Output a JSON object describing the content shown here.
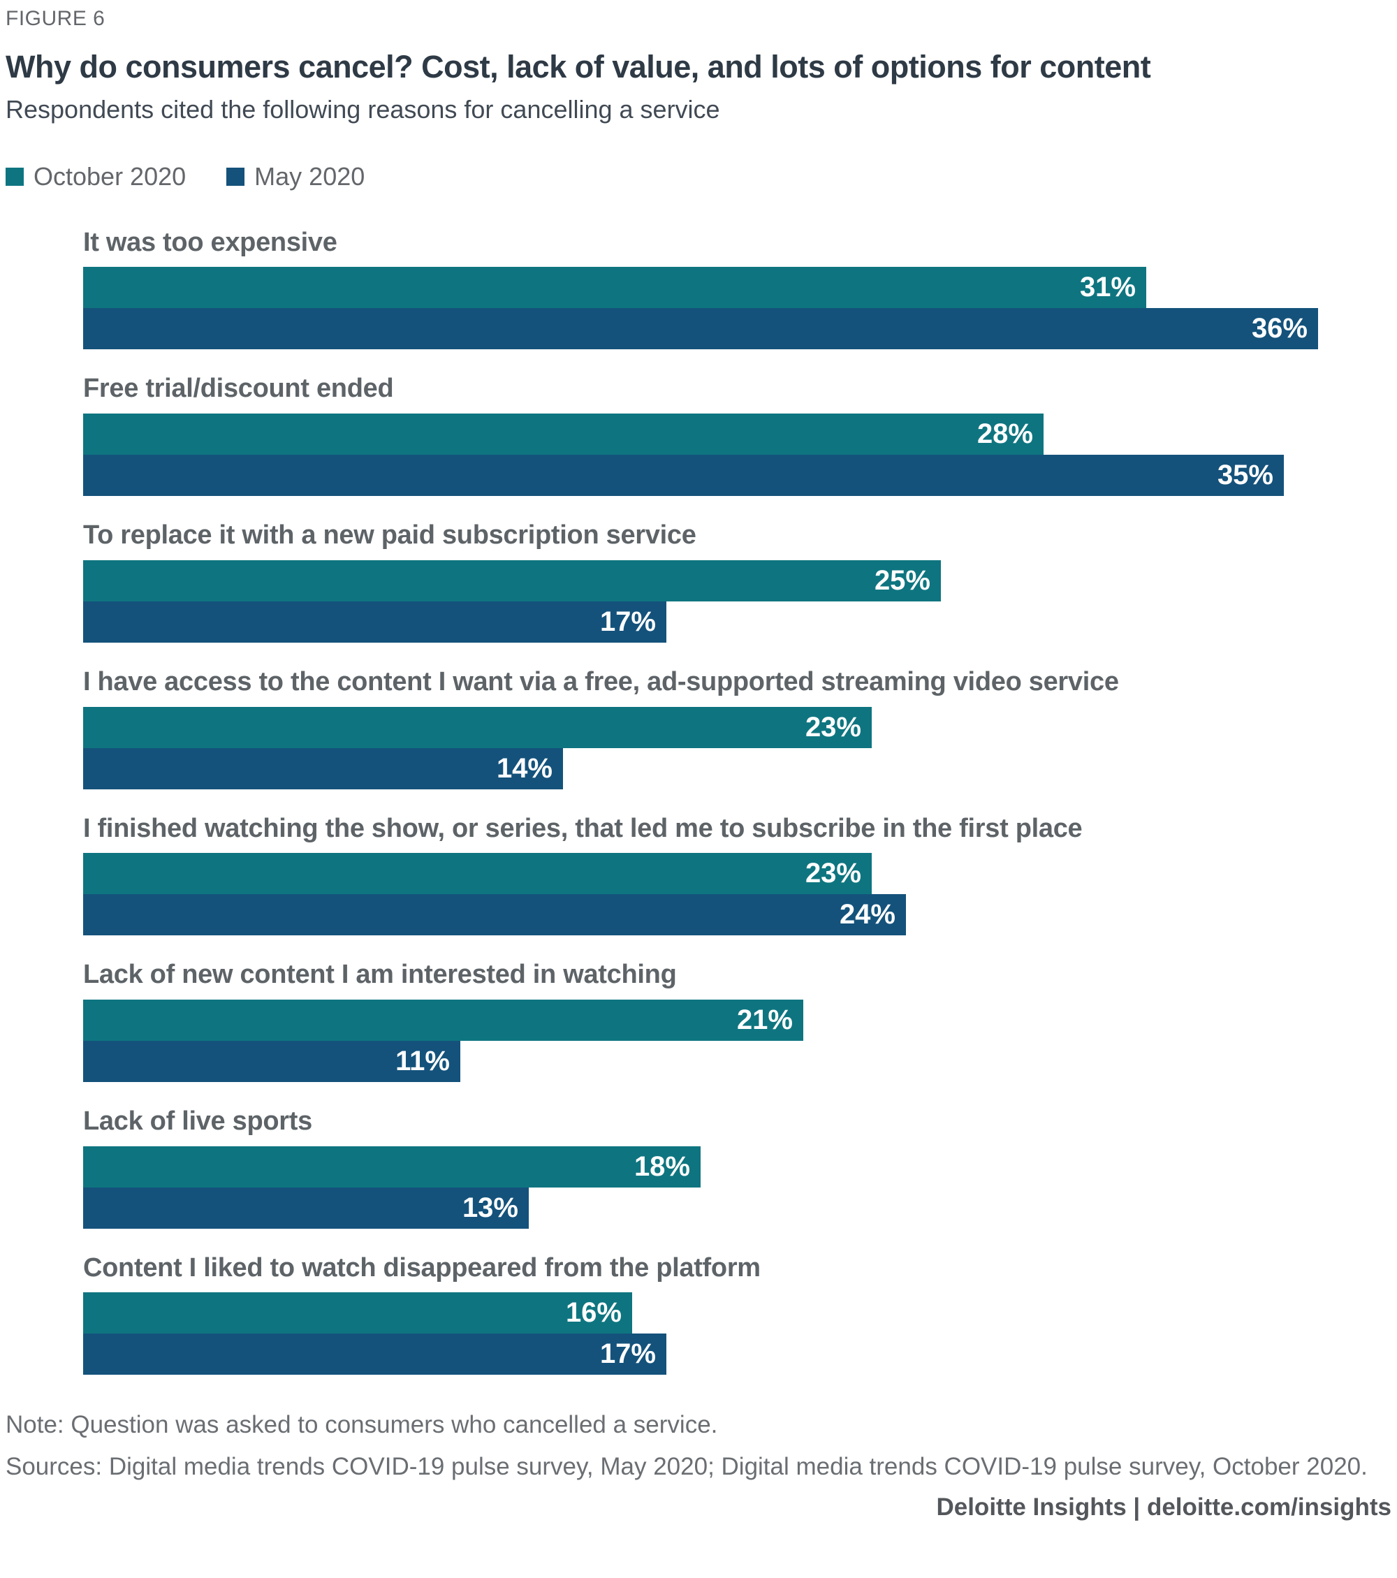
{
  "header": {
    "figure_label": "FIGURE 6",
    "title": "Why do consumers cancel? Cost, lack of value, and lots of options for content",
    "subtitle": "Respondents cited the following reasons for cancelling a service"
  },
  "legend": [
    {
      "label": "October 2020",
      "color": "#0E7580"
    },
    {
      "label": "May 2020",
      "color": "#14527B"
    }
  ],
  "chart_data": {
    "type": "bar",
    "orientation": "horizontal",
    "unit": "%",
    "categories": [
      "It was too expensive",
      "Free trial/discount ended",
      "To replace it with a new paid subscription service",
      "I have access to the content I want via a free, ad-supported streaming video service",
      "I finished watching the show, or series, that led me to subscribe in the first place",
      "Lack of new content I am interested in watching",
      "Lack of live sports",
      "Content I liked to watch disappeared from the platform"
    ],
    "series": [
      {
        "name": "October 2020",
        "color": "#0E7580",
        "values": [
          31,
          28,
          25,
          23,
          23,
          21,
          18,
          16
        ]
      },
      {
        "name": "May 2020",
        "color": "#14527B",
        "values": [
          36,
          35,
          17,
          14,
          24,
          11,
          13,
          17
        ]
      }
    ],
    "value_labels": "inside-end-white",
    "xlim": [
      0,
      38
    ],
    "grid": false,
    "legend_position": "top-left"
  },
  "footer": {
    "note": "Note: Question was asked to consumers who cancelled a service.",
    "sources": "Sources: Digital media trends COVID-19 pulse survey, May 2020; Digital media trends COVID-19 pulse survey, October 2020.",
    "credit": "Deloitte Insights | deloitte.com/insights"
  }
}
